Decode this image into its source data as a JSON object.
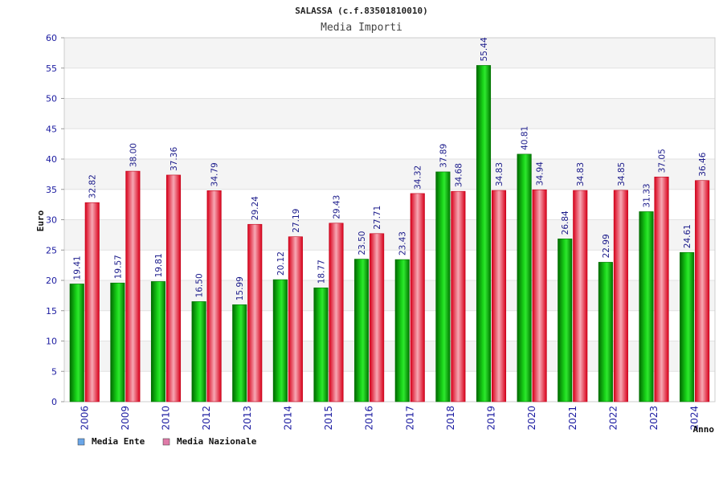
{
  "chart_data": {
    "type": "bar",
    "title": "SALASSA (c.f.83501810010)",
    "subtitle": "Media Importi",
    "ylabel": "Euro",
    "xlabel": "Anno",
    "ylim": [
      0,
      60
    ],
    "yticks": [
      0,
      5,
      10,
      15,
      20,
      25,
      30,
      35,
      40,
      45,
      50,
      55,
      60
    ],
    "grid": true,
    "legend_position": "bottom-left",
    "categories": [
      "2006",
      "2009",
      "2010",
      "2012",
      "2013",
      "2014",
      "2015",
      "2016",
      "2017",
      "2018",
      "2019",
      "2020",
      "2021",
      "2022",
      "2023",
      "2024"
    ],
    "series": [
      {
        "name": "Media Ente",
        "legend_color": "#6aa6e8",
        "bar_color": "#0fb80f",
        "values": [
          19.41,
          19.57,
          19.81,
          16.5,
          15.99,
          20.12,
          18.77,
          23.5,
          23.43,
          37.89,
          55.44,
          40.81,
          26.84,
          22.99,
          31.33,
          24.61
        ],
        "labels": [
          "19.41",
          "19.57",
          "19.81",
          "16.50",
          "15.99",
          "20.12",
          "18.77",
          "23.50",
          "23.43",
          "37.89",
          "55.44",
          "40.81",
          "26.84",
          "22.99",
          "31.33",
          "24.61"
        ]
      },
      {
        "name": "Media Nazionale",
        "legend_color": "#e07aa8",
        "bar_color": "#e8101e",
        "values": [
          32.82,
          38.0,
          37.36,
          34.79,
          29.24,
          27.19,
          29.43,
          27.71,
          34.32,
          34.68,
          34.83,
          34.94,
          34.83,
          34.85,
          37.05,
          36.46
        ],
        "labels": [
          "32.82",
          "38.00",
          "37.36",
          "34.79",
          "29.24",
          "27.19",
          "29.43",
          "27.71",
          "34.32",
          "34.68",
          "34.83",
          "34.94",
          "34.83",
          "34.85",
          "37.05",
          "36.46"
        ]
      }
    ]
  }
}
